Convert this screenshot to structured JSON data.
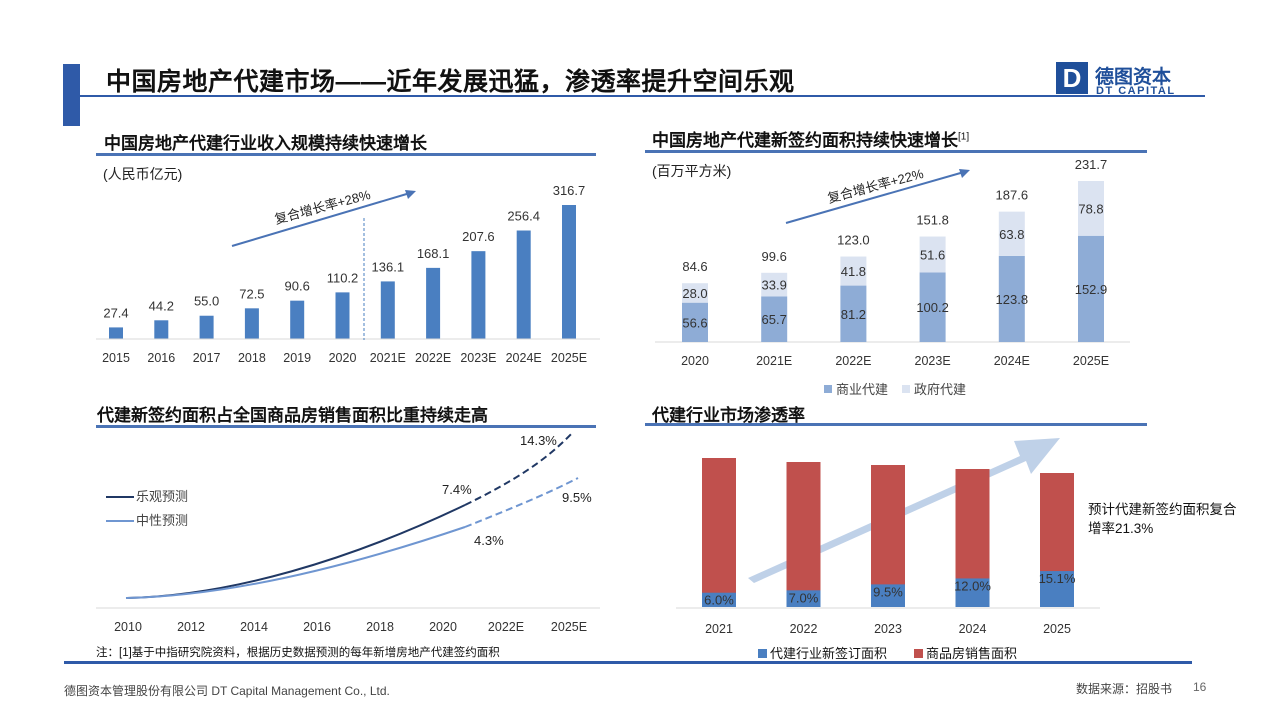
{
  "header": {
    "title": "中国房地产代建市场——近年发展迅猛，渗透率提升空间乐观",
    "logo_mark": "D",
    "logo_cn": "德图资本",
    "logo_en": "DT CAPITAL"
  },
  "footer": {
    "company": "德图资本管理股份有限公司  DT Capital Management  Co., Ltd.",
    "source": "数据来源：招股书",
    "page": "16",
    "footnote": "注：[1]基于中指研究院资料，根据历史数据预测的每年新增房地产代建签约面积"
  },
  "chart_data": [
    {
      "type": "bar",
      "title": "中国房地产代建行业收入规模持续快速增长",
      "unit": "(人民币亿元)",
      "categories": [
        "2015",
        "2016",
        "2017",
        "2018",
        "2019",
        "2020",
        "2021E",
        "2022E",
        "2023E",
        "2024E",
        "2025E"
      ],
      "values": [
        27.4,
        44.2,
        55.0,
        72.5,
        90.6,
        110.2,
        136.1,
        168.1,
        207.6,
        256.4,
        316.7
      ],
      "value_labels": [
        "27.4",
        "44.2",
        "55.0",
        "72.5",
        "90.6",
        "110.2",
        "136.1",
        "168.1",
        "207.6",
        "256.4",
        "316.7"
      ],
      "annotation": "复合增长率+28%",
      "color": "#4a7fc1"
    },
    {
      "type": "bar",
      "stacked": true,
      "title": "中国房地产代建新签约面积持续快速增长",
      "title_sup": "[1]",
      "unit": "(百万平方米)",
      "categories": [
        "2020",
        "2021E",
        "2022E",
        "2023E",
        "2024E",
        "2025E"
      ],
      "series": [
        {
          "name": "商业代建",
          "values": [
            56.6,
            65.7,
            81.2,
            100.2,
            123.8,
            152.9
          ],
          "color": "#8eacd6"
        },
        {
          "name": "政府代建",
          "values": [
            28.0,
            33.9,
            41.8,
            51.6,
            63.8,
            78.8
          ],
          "color": "#dbe3f1"
        }
      ],
      "totals": [
        84.6,
        99.6,
        123.0,
        151.8,
        187.6,
        231.7
      ],
      "totals_labels": [
        "84.6",
        "99.6",
        "123.0",
        "151.8",
        "187.6",
        "231.7"
      ],
      "series_labels": [
        [
          "56.6",
          "65.7",
          "81.2",
          "100.2",
          "123.8",
          "152.9"
        ],
        [
          "28.0",
          "33.9",
          "41.8",
          "51.6",
          "63.8",
          "78.8"
        ]
      ],
      "annotation": "复合增长率+22%"
    },
    {
      "type": "line",
      "title": "代建新签约面积占全国商品房销售面积比重持续走高",
      "x": [
        "2010",
        "2012",
        "2014",
        "2016",
        "2018",
        "2020",
        "2022E",
        "2025E"
      ],
      "series": [
        {
          "name": "乐观预测",
          "color": "#203864",
          "end_actual": 7.4,
          "end_forecast": 14.3
        },
        {
          "name": "中性预测",
          "color": "#6f96d1",
          "end_actual": 4.3,
          "end_forecast": 9.5
        }
      ],
      "point_labels": [
        "7.4%",
        "14.3%",
        "4.3%",
        "9.5%"
      ]
    },
    {
      "type": "bar",
      "title": "代建行业市场渗透率",
      "categories": [
        "2021",
        "2022",
        "2023",
        "2024",
        "2025"
      ],
      "series": [
        {
          "name": "代建行业新签订面积",
          "color": "#4a7fc1",
          "values": [
            6.0,
            7.0,
            9.5,
            12.0,
            15.1
          ]
        },
        {
          "name": "商品房销售面积",
          "color": "#c0504d"
        }
      ],
      "value_labels": [
        "6.0%",
        "7.0%",
        "9.5%",
        "12.0%",
        "15.1%"
      ],
      "note": "预计代建新签约面积复合增率21.3%"
    }
  ]
}
